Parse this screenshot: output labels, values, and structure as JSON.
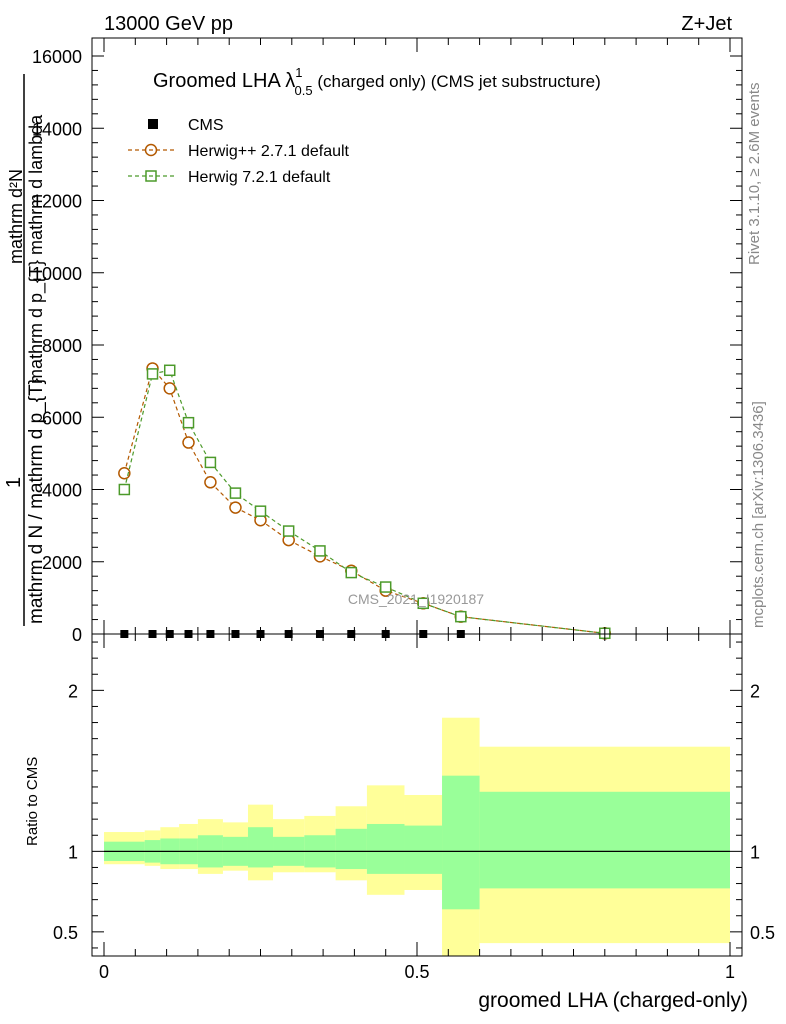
{
  "header": {
    "left": "13000 GeV pp",
    "right": "Z+Jet"
  },
  "side_text": {
    "rivet": "Rivet 3.1.10, ≥ 2.6M events",
    "mcplots": "mcplots.cern.ch [arXiv:1306.3436]"
  },
  "watermark": "CMS_2021_I1920187",
  "chart_data": [
    {
      "type": "line",
      "title": {
        "main": "Groomed LHA ",
        "lambda": "λ",
        "sup": "1",
        "sub": "0.5",
        "rest": "  (charged only) (CMS jet substructure)"
      },
      "ylabel": {
        "numerator": "mathrm d²N",
        "numerator_sub": "mathrm d p_{T} mathrm d lambda",
        "denominator": "mathrm d N / mathrm d p_{T}",
        "prefix": "1"
      },
      "xlim": [
        0,
        1
      ],
      "ylim": [
        0,
        16000
      ],
      "yticks": [
        2000,
        4000,
        6000,
        8000,
        10000,
        12000,
        14000,
        16000
      ],
      "yticklabels": [
        "2000",
        "4000",
        "6000",
        "8000",
        "10000",
        "12000",
        "14000",
        "16000"
      ],
      "ytick0label": "0",
      "legend": {
        "position": "top-left"
      },
      "series": [
        {
          "name": "CMS",
          "style": "data",
          "color": "#000000",
          "x": [
            0.0325,
            0.0775,
            0.105,
            0.135,
            0.17,
            0.21,
            0.25,
            0.295,
            0.345,
            0.395,
            0.45,
            0.51,
            0.57,
            0.8
          ],
          "values": [
            0,
            0,
            0,
            0,
            0,
            0,
            0,
            0,
            0,
            0,
            0,
            0,
            0,
            0
          ]
        },
        {
          "name": "Herwig++ 2.7.1 default",
          "style": "circle",
          "color": "#b35900",
          "x": [
            0.0325,
            0.0775,
            0.105,
            0.135,
            0.17,
            0.21,
            0.25,
            0.295,
            0.345,
            0.395,
            0.45,
            0.51,
            0.57,
            0.8
          ],
          "values": [
            4450,
            7350,
            6800,
            5300,
            4200,
            3500,
            3150,
            2600,
            2150,
            1750,
            1200,
            850,
            480,
            20
          ]
        },
        {
          "name": "Herwig 7.2.1 default",
          "style": "square",
          "color": "#4c9a2a",
          "x": [
            0.0325,
            0.0775,
            0.105,
            0.135,
            0.17,
            0.21,
            0.25,
            0.295,
            0.345,
            0.395,
            0.45,
            0.51,
            0.57,
            0.8
          ],
          "values": [
            4000,
            7200,
            7300,
            5850,
            4750,
            3900,
            3400,
            2850,
            2300,
            1700,
            1300,
            850,
            480,
            20
          ]
        }
      ]
    },
    {
      "type": "area",
      "ylabel": "Ratio to CMS",
      "xlabel": "groomed LHA (charged-only)",
      "xlim": [
        0,
        1
      ],
      "ylim": [
        0.35,
        2.35
      ],
      "yticks": [
        0.5,
        1,
        2
      ],
      "yticklabels": [
        "0.5",
        "1",
        "2"
      ],
      "xticks": [
        0,
        0.5,
        1
      ],
      "xticklabels": [
        "0",
        "0.5",
        "1"
      ],
      "bands": {
        "edges": [
          0,
          0.065,
          0.09,
          0.12,
          0.15,
          0.19,
          0.23,
          0.27,
          0.32,
          0.37,
          0.42,
          0.48,
          0.54,
          0.6,
          1.0
        ],
        "inner_color": "#99ff99",
        "outer_color": "#ffff99",
        "inner_low": [
          0.94,
          0.93,
          0.92,
          0.92,
          0.9,
          0.91,
          0.9,
          0.91,
          0.9,
          0.89,
          0.86,
          0.86,
          0.64,
          0.77
        ],
        "inner_high": [
          1.06,
          1.07,
          1.08,
          1.08,
          1.1,
          1.09,
          1.15,
          1.09,
          1.1,
          1.14,
          1.17,
          1.16,
          1.47,
          1.37
        ],
        "outer_low": [
          0.92,
          0.91,
          0.89,
          0.89,
          0.86,
          0.88,
          0.82,
          0.87,
          0.87,
          0.82,
          0.73,
          0.76,
          0.34,
          0.43
        ],
        "outer_high": [
          1.12,
          1.13,
          1.15,
          1.17,
          1.2,
          1.18,
          1.29,
          1.2,
          1.22,
          1.28,
          1.41,
          1.35,
          1.83,
          1.65
        ]
      }
    }
  ]
}
